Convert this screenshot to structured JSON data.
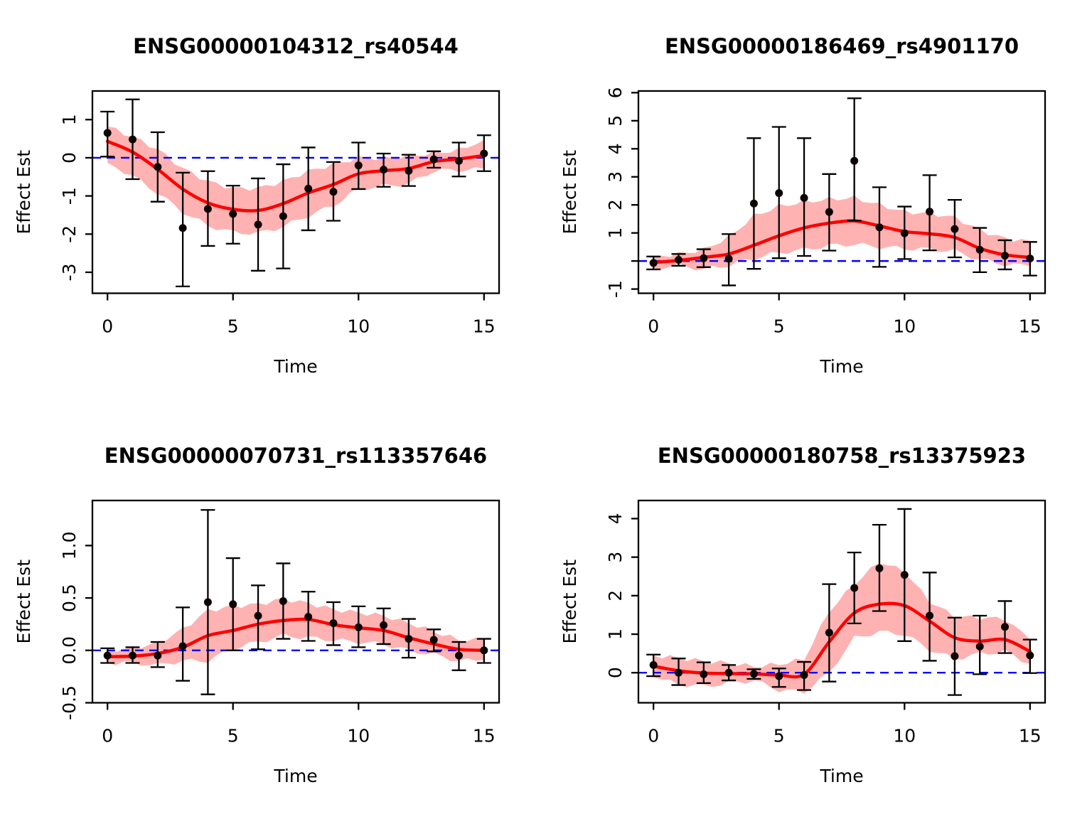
{
  "figure": {
    "background": "#ffffff",
    "rows": 2,
    "cols": 2
  },
  "colors": {
    "smooth_line": "#ff0000",
    "confidence_band": "rgba(255,0,0,0.30)",
    "zero_line": "#0000ff",
    "points": "#0d0303",
    "error_bars": "#000000",
    "axis": "#000000"
  },
  "chart_data": [
    {
      "type": "line",
      "title": "ENSG00000104312_rs40544",
      "xlabel": "Time",
      "ylabel": "Effect Est",
      "x": [
        0,
        1,
        2,
        3,
        4,
        5,
        6,
        7,
        8,
        9,
        10,
        11,
        12,
        13,
        14,
        15
      ],
      "points": [
        0.65,
        0.48,
        -0.24,
        -1.84,
        -1.34,
        -1.47,
        -1.75,
        -1.53,
        -0.81,
        -0.89,
        -0.2,
        -0.31,
        -0.34,
        -0.04,
        -0.08,
        0.11
      ],
      "err_low": [
        0.03,
        -0.56,
        -1.15,
        -3.37,
        -2.31,
        -2.25,
        -2.96,
        -2.9,
        -1.9,
        -1.65,
        -0.82,
        -0.76,
        -0.74,
        -0.26,
        -0.49,
        -0.35
      ],
      "err_high": [
        1.21,
        1.53,
        0.67,
        -0.39,
        -0.35,
        -0.73,
        -0.54,
        -0.17,
        0.27,
        -0.11,
        0.4,
        0.11,
        0.08,
        0.17,
        0.4,
        0.59
      ],
      "smooth": [
        0.43,
        0.15,
        -0.3,
        -0.82,
        -1.18,
        -1.35,
        -1.38,
        -1.2,
        -0.92,
        -0.7,
        -0.42,
        -0.34,
        -0.28,
        -0.1,
        -0.03,
        0.06
      ],
      "band_low": [
        -0.13,
        -0.48,
        -0.92,
        -1.42,
        -1.78,
        -1.95,
        -1.98,
        -1.8,
        -1.52,
        -1.25,
        -0.81,
        -0.74,
        -0.68,
        -0.34,
        -0.32,
        -0.29
      ],
      "band_high": [
        0.82,
        0.55,
        0.22,
        -0.28,
        -0.62,
        -0.8,
        -0.8,
        -0.62,
        -0.35,
        -0.18,
        0.0,
        -0.02,
        0.05,
        0.12,
        0.2,
        0.47
      ],
      "xlim": [
        -0.6,
        15.6
      ],
      "ylim": [
        -3.55,
        1.75
      ],
      "xticks": [
        0,
        5,
        10,
        15
      ],
      "xtick_labels": [
        "0",
        "5",
        "10",
        "15"
      ],
      "yticks": [
        -3,
        -2,
        -1,
        0,
        1
      ],
      "ytick_labels": [
        "-3",
        "-2",
        "-1",
        "0",
        "1"
      ],
      "zero_line": 0,
      "grid": false,
      "legend": null
    },
    {
      "type": "line",
      "title": "ENSG00000186469_rs4901170",
      "xlabel": "Time",
      "ylabel": "Effect Est",
      "x": [
        0,
        1,
        2,
        3,
        4,
        5,
        6,
        7,
        8,
        9,
        10,
        11,
        12,
        13,
        14,
        15
      ],
      "points": [
        -0.07,
        0.04,
        0.1,
        0.08,
        2.05,
        2.42,
        2.25,
        1.75,
        3.57,
        1.2,
        0.99,
        1.76,
        1.14,
        0.4,
        0.19,
        0.09
      ],
      "err_low": [
        -0.3,
        -0.17,
        -0.22,
        -0.87,
        -0.28,
        0.1,
        0.18,
        0.37,
        1.44,
        -0.21,
        0.07,
        0.38,
        0.13,
        -0.4,
        -0.3,
        -0.52
      ],
      "err_high": [
        0.16,
        0.25,
        0.42,
        0.96,
        4.38,
        4.78,
        4.38,
        3.1,
        5.8,
        2.63,
        1.94,
        3.06,
        2.18,
        1.18,
        0.74,
        0.68
      ],
      "smooth": [
        -0.05,
        0.02,
        0.13,
        0.25,
        0.56,
        0.9,
        1.18,
        1.35,
        1.43,
        1.25,
        1.05,
        0.97,
        0.84,
        0.45,
        0.22,
        0.13
      ],
      "band_low": [
        -0.25,
        -0.15,
        -0.3,
        -0.15,
        0.1,
        0.3,
        0.4,
        0.55,
        0.6,
        0.5,
        0.45,
        0.42,
        0.35,
        0.05,
        -0.12,
        -0.18
      ],
      "band_high": [
        0.15,
        0.25,
        0.4,
        0.85,
        1.6,
        1.95,
        2.1,
        2.2,
        2.25,
        2.0,
        1.75,
        1.7,
        1.55,
        1.1,
        0.8,
        0.72
      ],
      "xlim": [
        -0.6,
        15.6
      ],
      "ylim": [
        -1.15,
        6.06
      ],
      "xticks": [
        0,
        5,
        10,
        15
      ],
      "xtick_labels": [
        "0",
        "5",
        "10",
        "15"
      ],
      "yticks": [
        -1,
        0,
        1,
        2,
        3,
        4,
        5,
        6
      ],
      "ytick_labels": [
        "-1",
        "",
        "1",
        "2",
        "3",
        "4",
        "5",
        "6"
      ],
      "zero_line": 0,
      "grid": false,
      "legend": null
    },
    {
      "type": "line",
      "title": "ENSG00000070731_rs113357646",
      "xlabel": "Time",
      "ylabel": "Effect Est",
      "x": [
        0,
        1,
        2,
        3,
        4,
        5,
        6,
        7,
        8,
        9,
        10,
        11,
        12,
        13,
        14,
        15
      ],
      "points": [
        -0.05,
        -0.05,
        -0.05,
        0.04,
        0.46,
        0.44,
        0.33,
        0.47,
        0.32,
        0.26,
        0.22,
        0.24,
        0.11,
        0.1,
        -0.05,
        0.0
      ],
      "err_low": [
        -0.12,
        -0.12,
        -0.16,
        -0.29,
        -0.42,
        0.0,
        0.01,
        0.11,
        0.09,
        0.05,
        0.03,
        0.06,
        -0.07,
        -0.01,
        -0.19,
        -0.12
      ],
      "err_high": [
        0.02,
        0.03,
        0.08,
        0.41,
        1.34,
        0.88,
        0.62,
        0.83,
        0.56,
        0.46,
        0.42,
        0.4,
        0.3,
        0.2,
        0.08,
        0.11
      ],
      "smooth": [
        -0.06,
        -0.055,
        -0.03,
        0.03,
        0.14,
        0.19,
        0.25,
        0.285,
        0.295,
        0.245,
        0.215,
        0.19,
        0.12,
        0.06,
        0.01,
        0.0
      ],
      "band_low": [
        -0.12,
        -0.12,
        -0.14,
        -0.1,
        -0.1,
        0.02,
        0.08,
        0.14,
        0.12,
        0.1,
        0.08,
        0.06,
        0.0,
        -0.04,
        -0.1,
        -0.09
      ],
      "band_high": [
        0.0,
        0.02,
        0.07,
        0.2,
        0.38,
        0.42,
        0.44,
        0.49,
        0.45,
        0.39,
        0.36,
        0.33,
        0.26,
        0.18,
        0.1,
        0.1
      ],
      "xlim": [
        -0.6,
        15.6
      ],
      "ylim": [
        -0.5,
        1.43
      ],
      "xticks": [
        0,
        5,
        10,
        15
      ],
      "xtick_labels": [
        "0",
        "5",
        "10",
        "15"
      ],
      "yticks": [
        -0.5,
        0,
        0.5,
        1
      ],
      "ytick_labels": [
        "-0.5",
        "0.0",
        "0.5",
        "1.0"
      ],
      "zero_line": 0,
      "grid": false,
      "legend": null
    },
    {
      "type": "line",
      "title": "ENSG00000180758_rs13375923",
      "xlabel": "Time",
      "ylabel": "Effect Est",
      "x": [
        0,
        1,
        2,
        3,
        4,
        5,
        6,
        7,
        8,
        9,
        10,
        11,
        12,
        13,
        14,
        15
      ],
      "points": [
        0.2,
        0.0,
        -0.04,
        0.0,
        -0.03,
        -0.09,
        -0.06,
        1.04,
        2.2,
        2.71,
        2.54,
        1.48,
        0.43,
        0.68,
        1.19,
        0.45
      ],
      "err_low": [
        -0.09,
        -0.32,
        -0.27,
        -0.2,
        -0.16,
        -0.37,
        -0.45,
        -0.23,
        1.28,
        1.6,
        0.82,
        0.31,
        -0.58,
        -0.04,
        0.51,
        -0.01
      ],
      "err_high": [
        0.47,
        0.37,
        0.27,
        0.2,
        0.09,
        0.11,
        0.28,
        2.3,
        3.12,
        3.84,
        4.25,
        2.6,
        1.43,
        1.48,
        1.86,
        0.86
      ],
      "smooth": [
        0.17,
        0.05,
        -0.01,
        -0.02,
        -0.03,
        -0.06,
        -0.04,
        0.8,
        1.55,
        1.78,
        1.74,
        1.34,
        0.91,
        0.82,
        0.86,
        0.55
      ],
      "band_low": [
        -0.12,
        -0.3,
        -0.35,
        -0.27,
        -0.2,
        -0.45,
        -0.5,
        0.0,
        0.9,
        1.06,
        1.0,
        0.6,
        0.36,
        0.49,
        0.55,
        0.23
      ],
      "band_high": [
        0.45,
        0.38,
        0.3,
        0.25,
        0.16,
        0.22,
        0.35,
        1.6,
        2.3,
        2.88,
        2.63,
        1.85,
        1.46,
        1.43,
        1.4,
        0.86
      ],
      "xlim": [
        -0.6,
        15.6
      ],
      "ylim": [
        -0.78,
        4.47
      ],
      "xticks": [
        0,
        5,
        10,
        15
      ],
      "xtick_labels": [
        "0",
        "5",
        "10",
        "15"
      ],
      "yticks": [
        0,
        1,
        2,
        3,
        4
      ],
      "ytick_labels": [
        "0",
        "1",
        "2",
        "3",
        "4"
      ],
      "zero_line": 0,
      "grid": false,
      "legend": null
    }
  ]
}
